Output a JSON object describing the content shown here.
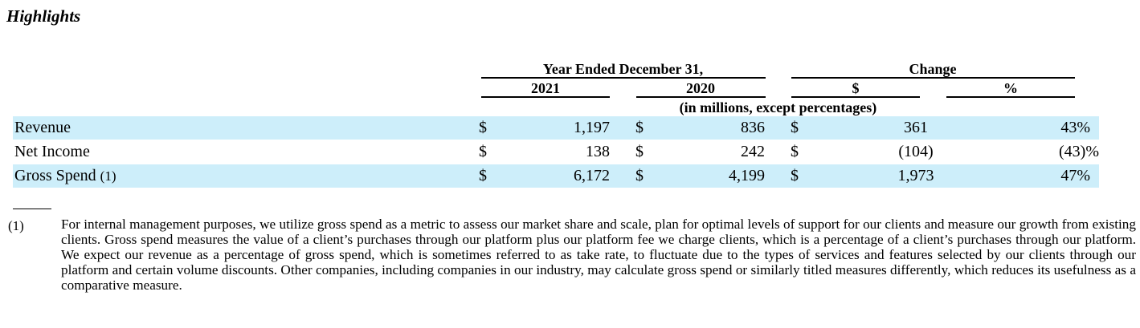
{
  "title": "Highlights",
  "header": {
    "year_group": "Year Ended December 31,",
    "change_group": "Change",
    "col_2021": "2021",
    "col_2020": "2020",
    "col_dollar": "$",
    "col_pct": "%",
    "units": "(in millions, except percentages)"
  },
  "rows": [
    {
      "label": "Revenue",
      "note": "",
      "cur1": "$",
      "v2021": "1,197",
      "cur2": "$",
      "v2020": "836",
      "cur3": "$",
      "change": "361",
      "pct": "43%"
    },
    {
      "label": "Net Income",
      "note": "",
      "cur1": "$",
      "v2021": "138",
      "cur2": "$",
      "v2020": "242",
      "cur3": "$",
      "change": "(104)",
      "pct": "(43)%"
    },
    {
      "label": "Gross Spend",
      "note": "(1)",
      "cur1": "$",
      "v2021": "6,172",
      "cur2": "$",
      "v2020": "4,199",
      "cur3": "$",
      "change": "1,973",
      "pct": "47%"
    }
  ],
  "footnote": {
    "marker": "(1)",
    "text": "For internal management purposes, we utilize gross spend as a metric to assess our market share and scale, plan for optimal levels of support for our clients and measure our growth from existing clients. Gross spend measures the value of a client’s purchases through our platform plus our platform fee we charge clients, which is a percentage of a client’s purchases through our platform. We expect our revenue as a percentage of gross spend, which is sometimes referred to as take rate, to fluctuate due to the types of services and features selected by our clients through our platform and certain volume discounts. Other companies, including companies in our industry, may calculate gross spend or similarly titled measures differently, which reduces its usefulness as a comparative measure."
  }
}
